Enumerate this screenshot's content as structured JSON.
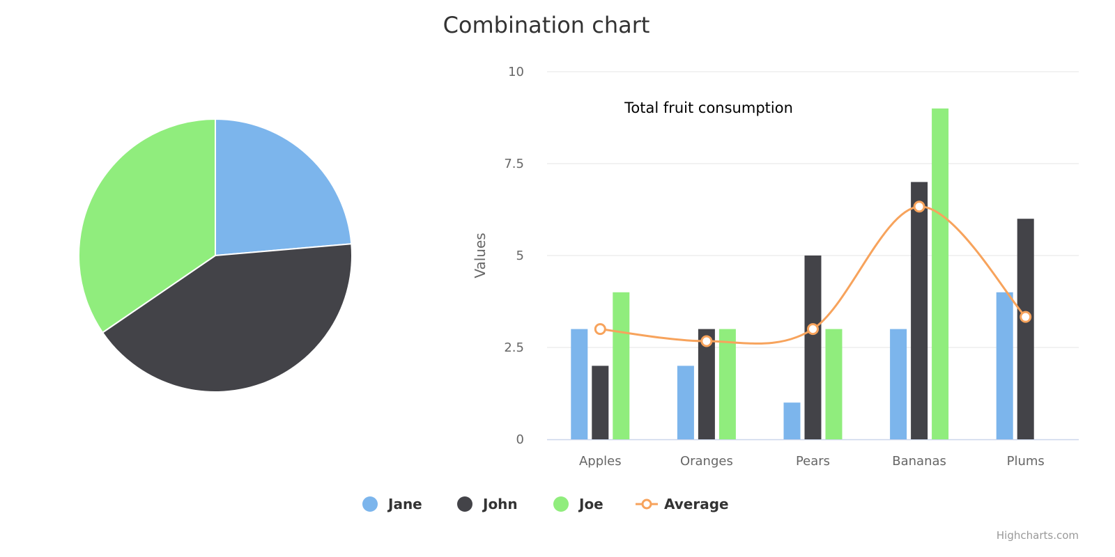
{
  "chart_data": {
    "type": "combination",
    "title": "Combination chart",
    "categories": [
      "Apples",
      "Oranges",
      "Pears",
      "Bananas",
      "Plums"
    ],
    "ylabel": "Values",
    "ylim": [
      0,
      10
    ],
    "yticks": [
      "0",
      "2.5",
      "5",
      "7.5",
      "10"
    ],
    "ytick_values": [
      0,
      2.5,
      5,
      7.5,
      10
    ],
    "grid": true,
    "series": [
      {
        "name": "Jane",
        "type": "column",
        "color": "#7cb5ec",
        "values": [
          3,
          2,
          1,
          3,
          4
        ]
      },
      {
        "name": "John",
        "type": "column",
        "color": "#434348",
        "values": [
          2,
          3,
          5,
          7,
          6
        ]
      },
      {
        "name": "Joe",
        "type": "column",
        "color": "#90ed7d",
        "values": [
          4,
          3,
          3,
          9,
          0
        ]
      },
      {
        "name": "Average",
        "type": "spline",
        "color": "#f7a35c",
        "values": [
          3,
          2.67,
          3,
          6.33,
          3.33
        ]
      }
    ],
    "pie": {
      "name": "Total fruit consumption",
      "slices": [
        {
          "name": "Jane",
          "value": 13,
          "color": "#7cb5ec"
        },
        {
          "name": "John",
          "value": 23,
          "color": "#434348"
        },
        {
          "name": "Joe",
          "value": 19,
          "color": "#90ed7d"
        }
      ]
    },
    "legend_position": "bottom-center",
    "credit": "Highcharts.com"
  }
}
